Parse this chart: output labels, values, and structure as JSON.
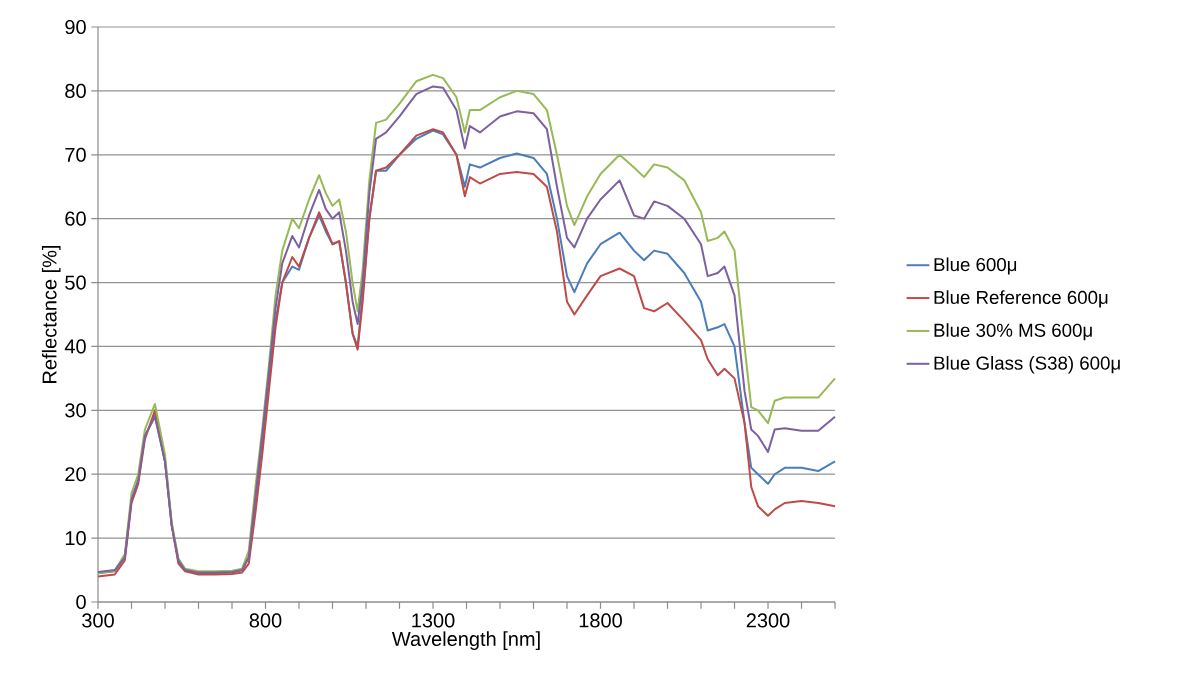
{
  "chart_data": {
    "type": "line",
    "xlabel": "Wavelength [nm]",
    "ylabel": "Reflectance [%]",
    "x": [
      300,
      350,
      380,
      400,
      420,
      440,
      470,
      500,
      520,
      540,
      560,
      600,
      650,
      700,
      730,
      750,
      770,
      790,
      810,
      830,
      850,
      880,
      900,
      930,
      960,
      980,
      1000,
      1020,
      1040,
      1060,
      1075,
      1090,
      1110,
      1130,
      1160,
      1200,
      1250,
      1300,
      1330,
      1370,
      1395,
      1410,
      1440,
      1500,
      1550,
      1600,
      1640,
      1670,
      1700,
      1722,
      1760,
      1800,
      1857,
      1900,
      1930,
      1960,
      2000,
      2050,
      2100,
      2120,
      2150,
      2170,
      2200,
      2230,
      2250,
      2270,
      2300,
      2320,
      2350,
      2400,
      2450,
      2500
    ],
    "series": [
      {
        "name": "Blue 600μ",
        "color": "#4a7ebb",
        "values": [
          4.5,
          4.8,
          7,
          16,
          19,
          26,
          29.2,
          22,
          12,
          6.5,
          5,
          4.5,
          4.5,
          4.6,
          5,
          7,
          16,
          25,
          35,
          44,
          50,
          52.5,
          52,
          57,
          60.5,
          58,
          56,
          56.5,
          50,
          42,
          40,
          48,
          60,
          67.5,
          67.5,
          70,
          72.5,
          73.8,
          73.2,
          70,
          65,
          68.5,
          68,
          69.5,
          70.2,
          69.5,
          67,
          60,
          51,
          48.5,
          53,
          56,
          57.8,
          55,
          53.5,
          55,
          54.5,
          51.5,
          47,
          42.5,
          43,
          43.5,
          40,
          28,
          21,
          20,
          18.5,
          20,
          21,
          21,
          20.5,
          22
        ]
      },
      {
        "name": "Blue Reference 600μ",
        "color": "#be4b48",
        "values": [
          4,
          4.3,
          6.5,
          15.5,
          18.5,
          25.5,
          30,
          22,
          12,
          6,
          4.8,
          4.3,
          4.3,
          4.4,
          4.6,
          6,
          14,
          23,
          33,
          43,
          50,
          54,
          52.5,
          57,
          61,
          58.5,
          56,
          56.5,
          50,
          42,
          39.5,
          47,
          60,
          67.5,
          68,
          70,
          73,
          74,
          73.5,
          70,
          63.5,
          66.5,
          65.5,
          67,
          67.3,
          67,
          65,
          58,
          47,
          45,
          48,
          51,
          52.2,
          51,
          46,
          45.5,
          46.8,
          44,
          41,
          38,
          35.5,
          36.5,
          35,
          28,
          18,
          15,
          13.5,
          14.5,
          15.5,
          15.8,
          15.5,
          15
        ]
      },
      {
        "name": "Blue 30% MS 600μ",
        "color": "#98b954",
        "values": [
          4.5,
          4.9,
          7.5,
          17,
          20,
          27,
          31,
          23,
          12.5,
          6.8,
          5.2,
          4.8,
          4.8,
          4.9,
          5.2,
          8,
          18,
          27,
          37,
          48,
          55,
          60,
          58.5,
          63,
          66.8,
          64,
          62,
          63,
          58,
          50,
          45.5,
          52,
          66,
          75,
          75.5,
          78,
          81.5,
          82.5,
          82,
          79,
          73.5,
          77,
          77,
          79,
          80,
          79.5,
          77,
          70,
          62,
          59,
          63.5,
          67,
          70,
          68,
          66.5,
          68.5,
          68,
          66,
          61,
          56.5,
          57,
          58,
          55,
          40,
          30.5,
          30,
          28,
          31.5,
          32,
          32,
          32,
          35
        ]
      },
      {
        "name": "Blue Glass (S38) 600μ",
        "color": "#7d60a0",
        "values": [
          4.7,
          5,
          7,
          16,
          19,
          26,
          29,
          22,
          12,
          6.5,
          5,
          4.6,
          4.6,
          4.7,
          5,
          7,
          16.5,
          26,
          36,
          46,
          53,
          57.3,
          55.5,
          60.5,
          64.5,
          61.5,
          60,
          61,
          55,
          47,
          43.5,
          50,
          64,
          72.5,
          73.5,
          76,
          79.5,
          80.7,
          80.5,
          77,
          71,
          74.5,
          73.5,
          76,
          76.8,
          76.5,
          74,
          65,
          57,
          55.5,
          60,
          63,
          66,
          60.5,
          60,
          62.7,
          62,
          60,
          56,
          51,
          51.5,
          52.5,
          48,
          33,
          27,
          26,
          23.5,
          27,
          27.2,
          26.8,
          26.8,
          29
        ]
      }
    ],
    "xlim": [
      300,
      2500
    ],
    "xticks": [
      300,
      {
        "value": 400,
        "label": null
      },
      {
        "value": 500,
        "label": null
      },
      {
        "value": 600,
        "label": null
      },
      {
        "value": 700,
        "label": null
      },
      800,
      {
        "value": 900,
        "label": null
      },
      {
        "value": 1000,
        "label": null
      },
      {
        "value": 1100,
        "label": null
      },
      {
        "value": 1200,
        "label": null
      },
      1300,
      {
        "value": 1400,
        "label": null
      },
      {
        "value": 1500,
        "label": null
      },
      {
        "value": 1600,
        "label": null
      },
      {
        "value": 1700,
        "label": null
      },
      1800,
      {
        "value": 1900,
        "label": null
      },
      {
        "value": 2000,
        "label": null
      },
      {
        "value": 2100,
        "label": null
      },
      {
        "value": 2200,
        "label": null
      },
      2300,
      {
        "value": 2400,
        "label": null
      },
      {
        "value": 2500,
        "label": null
      }
    ],
    "ylim": [
      0,
      90
    ],
    "yticks": [
      0,
      10,
      20,
      30,
      40,
      50,
      60,
      70,
      80,
      90
    ],
    "grid": "y",
    "legend": "right",
    "marker": "none",
    "line_style": "solid"
  }
}
